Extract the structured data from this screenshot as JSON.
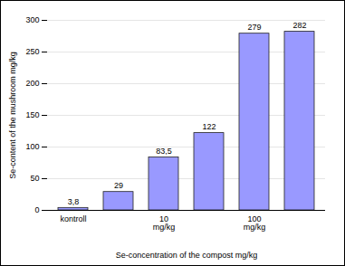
{
  "chart_data": {
    "type": "bar",
    "x_label": "Se-concentration of the compost mg/kg",
    "y_label": "Se-content of the mushroom mg/kg",
    "categories": [
      "kontroll",
      null,
      "10 mg/kg",
      null,
      "100 mg/kg",
      null
    ],
    "values": [
      3.8,
      29,
      83.5,
      122,
      279,
      282
    ],
    "value_labels": [
      "3,8",
      "29",
      "83,5",
      "122",
      "279",
      "282"
    ],
    "color": "#9999ff",
    "ylim": [
      0,
      300
    ],
    "yticks": [
      0,
      50,
      100,
      150,
      200,
      250,
      300
    ],
    "grid": true,
    "data_labels": true
  }
}
